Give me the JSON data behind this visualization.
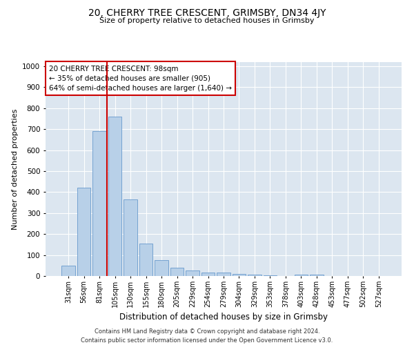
{
  "title": "20, CHERRY TREE CRESCENT, GRIMSBY, DN34 4JY",
  "subtitle": "Size of property relative to detached houses in Grimsby",
  "xlabel": "Distribution of detached houses by size in Grimsby",
  "ylabel": "Number of detached properties",
  "footer_line1": "Contains HM Land Registry data © Crown copyright and database right 2024.",
  "footer_line2": "Contains public sector information licensed under the Open Government Licence v3.0.",
  "categories": [
    "31sqm",
    "56sqm",
    "81sqm",
    "105sqm",
    "130sqm",
    "155sqm",
    "180sqm",
    "205sqm",
    "229sqm",
    "254sqm",
    "279sqm",
    "304sqm",
    "329sqm",
    "353sqm",
    "378sqm",
    "403sqm",
    "428sqm",
    "453sqm",
    "477sqm",
    "502sqm",
    "527sqm"
  ],
  "values": [
    48,
    420,
    690,
    760,
    365,
    155,
    75,
    38,
    27,
    18,
    15,
    9,
    5,
    3,
    0,
    8,
    8,
    0,
    0,
    0,
    0
  ],
  "bar_color": "#b8d0e8",
  "bar_edge_color": "#6699cc",
  "background_color": "#dce6f0",
  "grid_color": "#ffffff",
  "red_line_x": 2.5,
  "annotation_text_line1": "20 CHERRY TREE CRESCENT: 98sqm",
  "annotation_text_line2": "← 35% of detached houses are smaller (905)",
  "annotation_text_line3": "64% of semi-detached houses are larger (1,640) →",
  "annotation_box_color": "#cc0000",
  "ylim": [
    0,
    1020
  ],
  "yticks": [
    0,
    100,
    200,
    300,
    400,
    500,
    600,
    700,
    800,
    900,
    1000
  ],
  "title_fontsize": 10,
  "subtitle_fontsize": 8,
  "xlabel_fontsize": 8.5,
  "ylabel_fontsize": 8,
  "tick_fontsize": 7,
  "footer_fontsize": 6,
  "ann_fontsize": 7.5
}
